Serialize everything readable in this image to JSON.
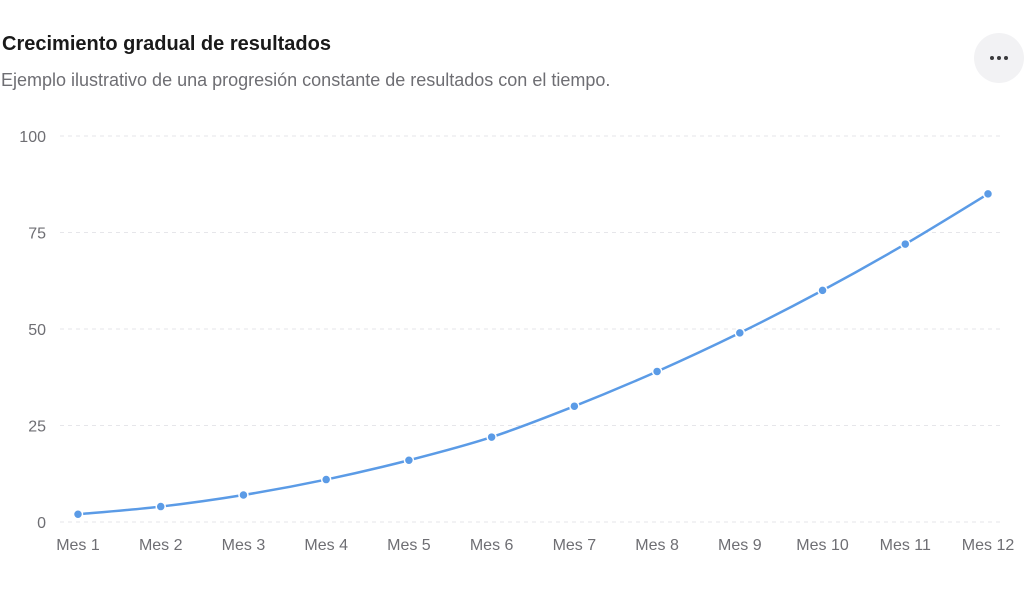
{
  "header": {
    "title": "Crecimiento gradual de resultados",
    "subtitle": "Ejemplo ilustrativo de una progresión constante de resultados con el tiempo.",
    "more_icon": "more-horizontal-icon"
  },
  "colors": {
    "line": "#5b9be6",
    "grid": "#e6e6ea",
    "tick_text": "#6e6e73",
    "title": "#1a1a1a",
    "subtitle": "#6e6e73"
  },
  "chart_data": {
    "type": "line",
    "categories": [
      "Mes 1",
      "Mes 2",
      "Mes 3",
      "Mes 4",
      "Mes 5",
      "Mes 6",
      "Mes 7",
      "Mes 8",
      "Mes 9",
      "Mes 10",
      "Mes 11",
      "Mes 12"
    ],
    "series": [
      {
        "values": [
          2,
          4,
          7,
          11,
          16,
          22,
          30,
          39,
          49,
          60,
          72,
          85
        ]
      }
    ],
    "yticks": [
      0,
      25,
      50,
      75,
      100
    ],
    "ylim": [
      0,
      100
    ],
    "grid": true,
    "title": "Crecimiento gradual de resultados",
    "xlabel": "",
    "ylabel": ""
  }
}
